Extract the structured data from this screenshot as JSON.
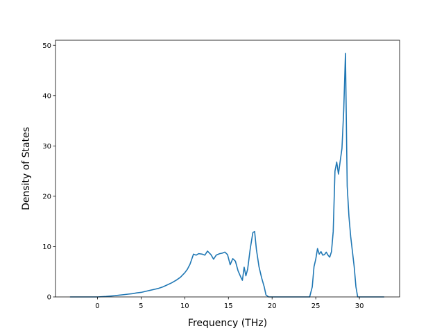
{
  "chart_data": {
    "type": "line",
    "title": "",
    "xlabel": "Frequency (THz)",
    "ylabel": "Density of States",
    "xlim": [
      -4.8,
      34.6
    ],
    "ylim": [
      0,
      51
    ],
    "xticks": [
      0,
      5,
      10,
      15,
      20,
      25,
      30
    ],
    "yticks": [
      0,
      10,
      20,
      30,
      40,
      50
    ],
    "grid": false,
    "legend": "none",
    "series": [
      {
        "color": "#1f77b4",
        "x": [
          -3.1,
          0,
          1,
          2,
          2.5,
          3,
          3.5,
          4,
          4.5,
          5,
          5.5,
          6,
          6.5,
          7,
          7.5,
          8,
          8.5,
          9,
          9.5,
          10,
          10.3,
          10.6,
          11,
          11.3,
          11.6,
          12,
          12.3,
          12.6,
          13,
          13.3,
          13.6,
          14,
          14.3,
          14.6,
          14.9,
          15.2,
          15.5,
          15.8,
          16.1,
          16.4,
          16.6,
          16.8,
          17,
          17.2,
          17.5,
          17.8,
          18,
          18.2,
          18.5,
          18.8,
          19.1,
          19.3,
          19.6,
          20,
          24.3,
          24.6,
          24.8,
          25,
          25.2,
          25.4,
          25.6,
          25.8,
          26,
          26.2,
          26.4,
          26.6,
          26.8,
          27,
          27.2,
          27.4,
          27.6,
          27.8,
          28,
          28.2,
          28.4,
          28.6,
          28.8,
          29,
          29.2,
          29.4,
          29.6,
          29.8,
          30,
          32.8
        ],
        "y": [
          0,
          0,
          0.1,
          0.25,
          0.35,
          0.45,
          0.55,
          0.65,
          0.8,
          0.9,
          1.1,
          1.3,
          1.5,
          1.7,
          2,
          2.4,
          2.8,
          3.3,
          3.9,
          4.8,
          5.5,
          6.5,
          8.5,
          8.3,
          8.6,
          8.5,
          8.3,
          9.1,
          8.4,
          7.5,
          8.3,
          8.6,
          8.7,
          8.9,
          8.4,
          6.4,
          7.6,
          7.1,
          5.2,
          4,
          3.3,
          5.9,
          4.2,
          5.5,
          9.6,
          12.8,
          13,
          9.5,
          6,
          3.8,
          2,
          0.4,
          0,
          0,
          0,
          2,
          6,
          7.5,
          9.6,
          8.5,
          9,
          8.3,
          8.4,
          8.9,
          8.3,
          7.9,
          9,
          13,
          25,
          26.8,
          24.4,
          27,
          29.5,
          37,
          48.4,
          22,
          16,
          12,
          9,
          6,
          2,
          0,
          0,
          0
        ]
      }
    ]
  }
}
